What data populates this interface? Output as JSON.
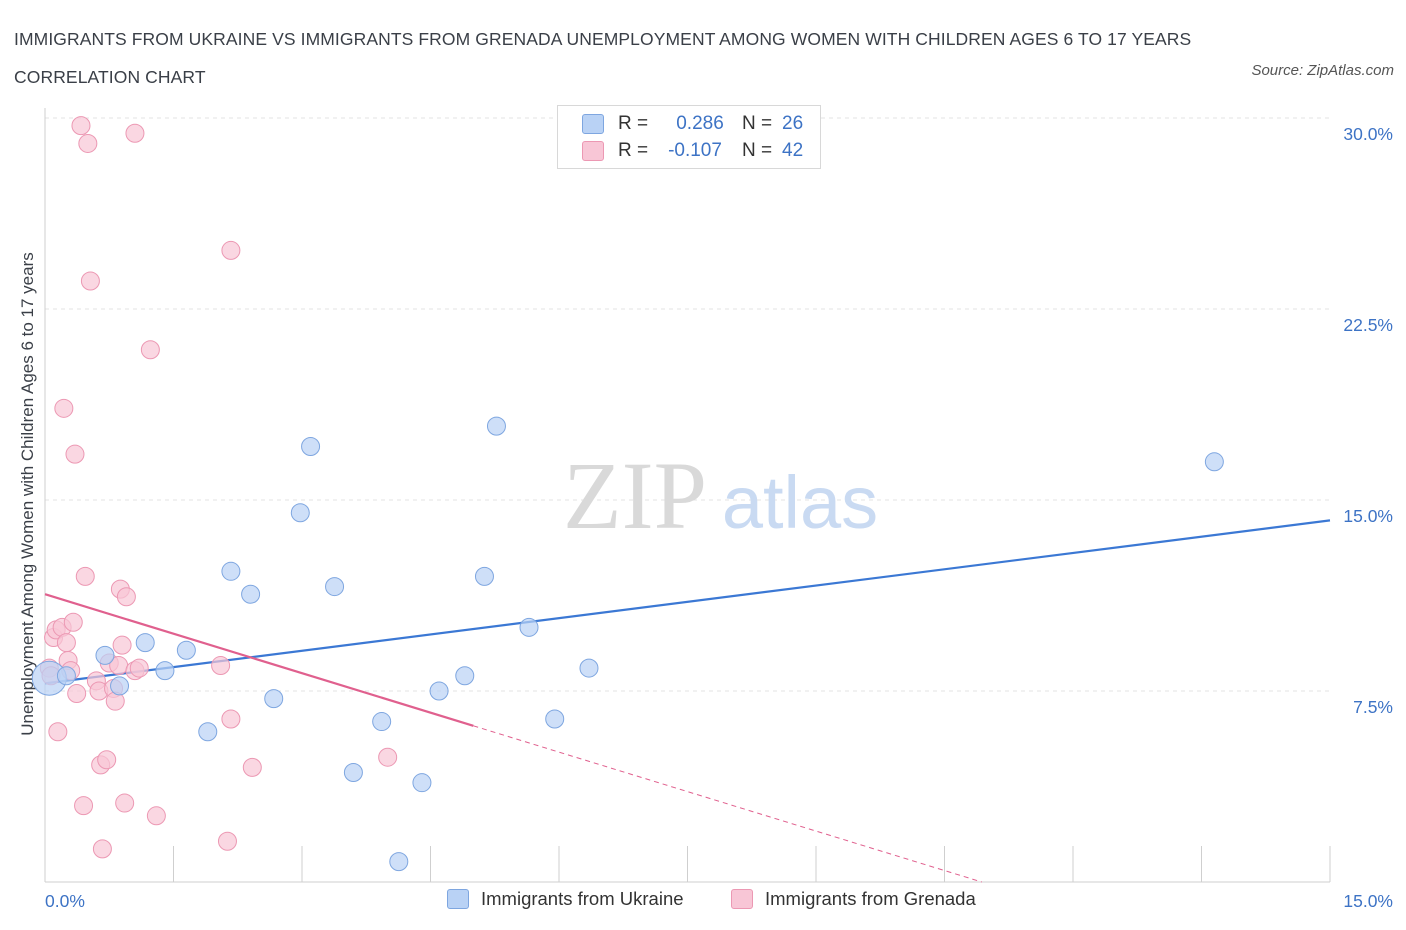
{
  "title": "IMMIGRANTS FROM UKRAINE VS IMMIGRANTS FROM GRENADA UNEMPLOYMENT AMONG WOMEN WITH CHILDREN AGES 6 TO 17 YEARS CORRELATION CHART",
  "source": "Source: ZipAtlas.com",
  "watermark": {
    "zip": "ZIP",
    "atlas": "atlas"
  },
  "legend": {
    "r_label": "R =",
    "n_label": "N =",
    "ukraine": {
      "r": "0.286",
      "n": "26"
    },
    "grenada": {
      "r": "-0.107",
      "n": "42"
    }
  },
  "colors": {
    "ukraine_fill": "#b9d2f5",
    "ukraine_stroke": "#7ea6e0",
    "ukraine_line": "#3b78d4",
    "grenada_fill": "#f8c6d6",
    "grenada_stroke": "#ec98b3",
    "grenada_line": "#e0608e",
    "tick_text": "#3d73c5",
    "grid": "#e3e3e3"
  },
  "chart_data": {
    "type": "scatter",
    "title": "IMMIGRANTS FROM UKRAINE VS IMMIGRANTS FROM GRENADA UNEMPLOYMENT AMONG WOMEN WITH CHILDREN AGES 6 TO 17 YEARS CORRELATION CHART",
    "xlabel": "",
    "ylabel": "Unemployment Among Women with Children Ages 6 to 17 years",
    "xlim": [
      0,
      15
    ],
    "ylim": [
      0,
      30
    ],
    "x_tick_labels": [
      "0.0%",
      "15.0%"
    ],
    "y_ticks": [
      7.5,
      15.0,
      22.5,
      30.0
    ],
    "y_tick_labels": [
      "7.5%",
      "15.0%",
      "22.5%",
      "30.0%"
    ],
    "grid": "horizontal dashed",
    "legend_position": "top-center and bottom",
    "series": [
      {
        "name": "Immigrants from Ukraine",
        "r": 0.286,
        "n": 26,
        "trend": {
          "x": [
            0,
            15
          ],
          "y": [
            7.8,
            14.2
          ]
        },
        "points": [
          {
            "x": 0.05,
            "y": 8.0,
            "size": "large"
          },
          {
            "x": 0.25,
            "y": 8.1
          },
          {
            "x": 0.7,
            "y": 8.9
          },
          {
            "x": 0.87,
            "y": 7.7
          },
          {
            "x": 1.17,
            "y": 9.4
          },
          {
            "x": 1.4,
            "y": 8.3
          },
          {
            "x": 1.65,
            "y": 9.1
          },
          {
            "x": 1.9,
            "y": 5.9
          },
          {
            "x": 2.17,
            "y": 12.2
          },
          {
            "x": 2.4,
            "y": 11.3
          },
          {
            "x": 2.67,
            "y": 7.2
          },
          {
            "x": 2.98,
            "y": 14.5
          },
          {
            "x": 3.1,
            "y": 17.1
          },
          {
            "x": 3.38,
            "y": 11.6
          },
          {
            "x": 3.6,
            "y": 4.3
          },
          {
            "x": 3.93,
            "y": 6.3
          },
          {
            "x": 4.13,
            "y": 0.8
          },
          {
            "x": 4.4,
            "y": 3.9
          },
          {
            "x": 4.6,
            "y": 7.5
          },
          {
            "x": 4.9,
            "y": 8.1
          },
          {
            "x": 5.13,
            "y": 12.0
          },
          {
            "x": 5.27,
            "y": 17.9
          },
          {
            "x": 5.65,
            "y": 10.0
          },
          {
            "x": 5.95,
            "y": 6.4
          },
          {
            "x": 6.35,
            "y": 8.4
          },
          {
            "x": 13.65,
            "y": 16.5
          }
        ]
      },
      {
        "name": "Immigrants from Grenada",
        "r": -0.107,
        "n": 42,
        "trend": {
          "x": [
            0,
            15
          ],
          "y": [
            11.3,
            -4.2
          ],
          "solid_to_x": 5.0
        },
        "points": [
          {
            "x": 0.05,
            "y": 8.4
          },
          {
            "x": 0.07,
            "y": 8.1
          },
          {
            "x": 0.1,
            "y": 9.6
          },
          {
            "x": 0.13,
            "y": 9.9
          },
          {
            "x": 0.15,
            "y": 5.9
          },
          {
            "x": 0.2,
            "y": 10.0
          },
          {
            "x": 0.22,
            "y": 18.6
          },
          {
            "x": 0.25,
            "y": 9.4
          },
          {
            "x": 0.27,
            "y": 8.7
          },
          {
            "x": 0.3,
            "y": 8.3
          },
          {
            "x": 0.33,
            "y": 10.2
          },
          {
            "x": 0.35,
            "y": 16.8
          },
          {
            "x": 0.37,
            "y": 7.4
          },
          {
            "x": 0.42,
            "y": 29.7
          },
          {
            "x": 0.45,
            "y": 3.0
          },
          {
            "x": 0.47,
            "y": 12.0
          },
          {
            "x": 0.5,
            "y": 29.0
          },
          {
            "x": 0.53,
            "y": 23.6
          },
          {
            "x": 0.6,
            "y": 7.9
          },
          {
            "x": 0.63,
            "y": 7.5
          },
          {
            "x": 0.65,
            "y": 4.6
          },
          {
            "x": 0.67,
            "y": 1.3
          },
          {
            "x": 0.72,
            "y": 4.8
          },
          {
            "x": 0.75,
            "y": 8.6
          },
          {
            "x": 0.8,
            "y": 7.6
          },
          {
            "x": 0.82,
            "y": 7.1
          },
          {
            "x": 0.86,
            "y": 8.5
          },
          {
            "x": 0.88,
            "y": 11.5
          },
          {
            "x": 0.9,
            "y": 9.3
          },
          {
            "x": 0.93,
            "y": 3.1
          },
          {
            "x": 0.95,
            "y": 11.2
          },
          {
            "x": 1.05,
            "y": 8.3
          },
          {
            "x": 1.1,
            "y": 8.4
          },
          {
            "x": 1.05,
            "y": 29.4
          },
          {
            "x": 1.23,
            "y": 20.9
          },
          {
            "x": 1.3,
            "y": 2.6
          },
          {
            "x": 2.05,
            "y": 8.5
          },
          {
            "x": 2.13,
            "y": 1.6
          },
          {
            "x": 2.17,
            "y": 6.4
          },
          {
            "x": 2.17,
            "y": 24.8
          },
          {
            "x": 2.42,
            "y": 4.5
          },
          {
            "x": 4.0,
            "y": 4.9
          }
        ]
      }
    ]
  }
}
